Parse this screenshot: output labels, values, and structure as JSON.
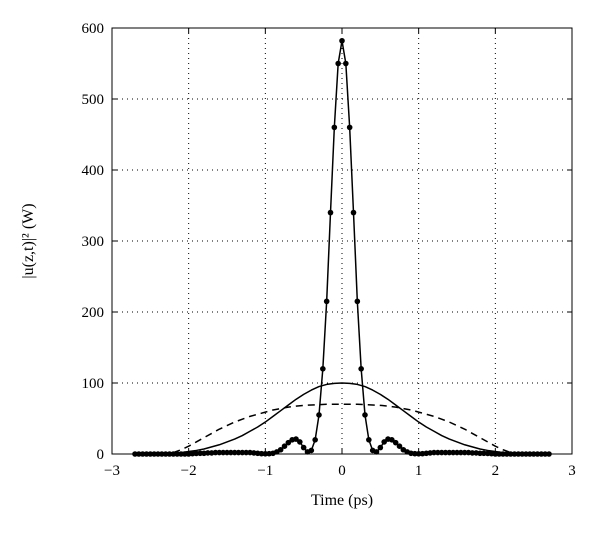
{
  "chart_data": {
    "type": "line",
    "title": "",
    "xlabel": "Time (ps)",
    "ylabel": "|u(z,t)|² (W)",
    "xlim": [
      -3,
      3
    ],
    "ylim": [
      0,
      600
    ],
    "xticks": [
      "−3",
      "−2",
      "−1",
      "0",
      "1",
      "2",
      "3"
    ],
    "yticks": [
      "0",
      "100",
      "200",
      "300",
      "400",
      "500",
      "600"
    ],
    "grid": true,
    "series": [
      {
        "style": "solid-with-dots",
        "x": [
          -2.7,
          -2.65,
          -2.6,
          -2.55,
          -2.5,
          -2.45,
          -2.4,
          -2.35,
          -2.3,
          -2.25,
          -2.2,
          -2.15,
          -2.1,
          -2.05,
          -2.0,
          -1.95,
          -1.9,
          -1.85,
          -1.8,
          -1.75,
          -1.7,
          -1.65,
          -1.6,
          -1.55,
          -1.5,
          -1.45,
          -1.4,
          -1.35,
          -1.3,
          -1.25,
          -1.2,
          -1.15,
          -1.1,
          -1.05,
          -1.0,
          -0.95,
          -0.9,
          -0.85,
          -0.8,
          -0.75,
          -0.7,
          -0.65,
          -0.6,
          -0.55,
          -0.5,
          -0.45,
          -0.4,
          -0.35,
          -0.3,
          -0.25,
          -0.2,
          -0.15,
          -0.1,
          -0.05,
          0.0,
          0.05,
          0.1,
          0.15,
          0.2,
          0.25,
          0.3,
          0.35,
          0.4,
          0.45,
          0.5,
          0.55,
          0.6,
          0.65,
          0.7,
          0.75,
          0.8,
          0.85,
          0.9,
          0.95,
          1.0,
          1.05,
          1.1,
          1.15,
          1.2,
          1.25,
          1.3,
          1.35,
          1.4,
          1.45,
          1.5,
          1.55,
          1.6,
          1.65,
          1.7,
          1.75,
          1.8,
          1.85,
          1.9,
          1.95,
          2.0,
          2.05,
          2.1,
          2.15,
          2.2,
          2.25,
          2.3,
          2.35,
          2.4,
          2.45,
          2.5,
          2.55,
          2.6,
          2.65,
          2.7
        ],
        "y": [
          0,
          0,
          0,
          0,
          0,
          0,
          0,
          0,
          0,
          0,
          0,
          0,
          0,
          0,
          0,
          0.5,
          0.8,
          1,
          1,
          1.5,
          1.5,
          2,
          2,
          2,
          2,
          2,
          2,
          2,
          2,
          2,
          2,
          1.5,
          1,
          0.5,
          0.3,
          0.5,
          1,
          3,
          6,
          11,
          16,
          20,
          21,
          17,
          9,
          3,
          5,
          20,
          55,
          120,
          215,
          340,
          460,
          550,
          582,
          550,
          460,
          340,
          215,
          120,
          55,
          20,
          5,
          3,
          9,
          17,
          21,
          20,
          16,
          11,
          6,
          3,
          1,
          0.5,
          0.3,
          0.5,
          1,
          1.5,
          2,
          2,
          2,
          2,
          2,
          2,
          2,
          2,
          2,
          2,
          1.5,
          1.5,
          1,
          1,
          0.8,
          0.5,
          0,
          0,
          0,
          0,
          0,
          0,
          0,
          0,
          0,
          0,
          0,
          0,
          0,
          0,
          0
        ]
      },
      {
        "style": "solid",
        "x": [
          -2.3,
          -2.2,
          -2.1,
          -2.0,
          -1.9,
          -1.8,
          -1.7,
          -1.6,
          -1.5,
          -1.4,
          -1.3,
          -1.2,
          -1.1,
          -1.0,
          -0.9,
          -0.8,
          -0.7,
          -0.6,
          -0.5,
          -0.4,
          -0.3,
          -0.2,
          -0.1,
          0.0,
          0.1,
          0.2,
          0.3,
          0.4,
          0.5,
          0.6,
          0.7,
          0.8,
          0.9,
          1.0,
          1.1,
          1.2,
          1.3,
          1.4,
          1.5,
          1.6,
          1.7,
          1.8,
          1.9,
          2.0,
          2.1,
          2.2,
          2.3
        ],
        "y": [
          0.5,
          1,
          2,
          3.5,
          5,
          7,
          10,
          13,
          17,
          21,
          26,
          32,
          38,
          45,
          53,
          61,
          69,
          77,
          84,
          90,
          95,
          98,
          99.5,
          100,
          99.5,
          98,
          95,
          90,
          84,
          77,
          69,
          61,
          53,
          45,
          38,
          32,
          26,
          21,
          17,
          13,
          10,
          7,
          5,
          3.5,
          2,
          1,
          0.5
        ]
      },
      {
        "style": "dashed",
        "x": [
          -2.2,
          -2.1,
          -2.0,
          -1.9,
          -1.8,
          -1.7,
          -1.6,
          -1.5,
          -1.4,
          -1.3,
          -1.2,
          -1.1,
          -1.0,
          -0.9,
          -0.8,
          -0.7,
          -0.6,
          -0.5,
          -0.4,
          -0.3,
          -0.2,
          -0.1,
          0.0,
          0.1,
          0.2,
          0.3,
          0.4,
          0.5,
          0.6,
          0.7,
          0.8,
          0.9,
          1.0,
          1.1,
          1.2,
          1.3,
          1.4,
          1.5,
          1.6,
          1.7,
          1.8,
          1.9,
          2.0,
          2.1,
          2.2
        ],
        "y": [
          2,
          6,
          11,
          17,
          23,
          29,
          35,
          40,
          45,
          49,
          53,
          56,
          59,
          62,
          64,
          66,
          67.5,
          68.5,
          69,
          69.5,
          70,
          70,
          70,
          70,
          70,
          69.5,
          69,
          68.5,
          67.5,
          66,
          64,
          62,
          59,
          56,
          53,
          49,
          45,
          40,
          35,
          29,
          23,
          17,
          11,
          6,
          2
        ]
      }
    ]
  }
}
